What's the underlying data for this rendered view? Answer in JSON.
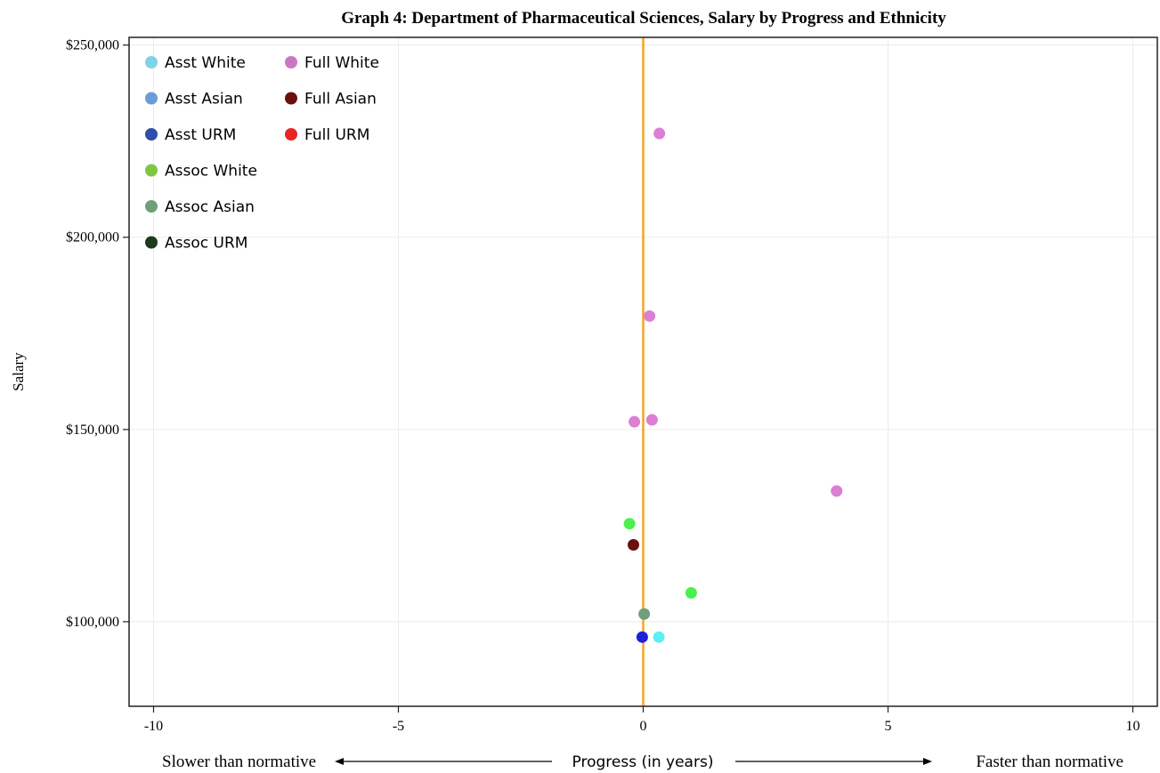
{
  "chart_data": {
    "type": "scatter",
    "title": "Graph 4: Department of Pharmaceutical Sciences, Salary by Progress and Ethnicity",
    "ylabel": "Salary",
    "xlabel": "Progress (in years)",
    "xlabel_left": "Slower than normative",
    "xlabel_right": "Faster than normative",
    "xlim": [
      -10.5,
      10.5
    ],
    "ylim": [
      78000,
      252000
    ],
    "x_ticks": [
      -10,
      -5,
      0,
      5,
      10
    ],
    "x_tick_labels": [
      "-10",
      "-5",
      "0",
      "5",
      "10"
    ],
    "y_ticks": [
      100000,
      150000,
      200000,
      250000
    ],
    "y_tick_labels": [
      "$100,000",
      "$150,000",
      "$200,000",
      "$250,000"
    ],
    "grid": true,
    "reference_line": {
      "x": 0,
      "color": "#f5a623"
    },
    "legend": {
      "placement": "top-left",
      "columns": [
        [
          {
            "name": "Asst White",
            "color": "#7fd3e6"
          },
          {
            "name": "Asst Asian",
            "color": "#6b9bd8"
          },
          {
            "name": "Asst URM",
            "color": "#2f4fa8"
          },
          {
            "name": "Assoc White",
            "color": "#7cc843"
          },
          {
            "name": "Assoc Asian",
            "color": "#6fa07a"
          },
          {
            "name": "Assoc URM",
            "color": "#1d3a1d"
          }
        ],
        [
          {
            "name": "Full White",
            "color": "#cc77c0"
          },
          {
            "name": "Full Asian",
            "color": "#6b1010"
          },
          {
            "name": "Full URM",
            "color": "#e82424"
          }
        ]
      ]
    },
    "points": [
      {
        "series": "Full White",
        "x": 0.33,
        "y": 227000,
        "color": "#db7fd3"
      },
      {
        "series": "Full White",
        "x": 0.13,
        "y": 179500,
        "color": "#db7fd3"
      },
      {
        "series": "Full White",
        "x": 0.18,
        "y": 152500,
        "color": "#db7fd3"
      },
      {
        "series": "Full White",
        "x": -0.18,
        "y": 152000,
        "color": "#db7fd3"
      },
      {
        "series": "Full White",
        "x": 3.95,
        "y": 134000,
        "color": "#db7fd3"
      },
      {
        "series": "Assoc White",
        "x": -0.28,
        "y": 125500,
        "color": "#4cf04c"
      },
      {
        "series": "Full Asian",
        "x": -0.2,
        "y": 120000,
        "color": "#6b1010"
      },
      {
        "series": "Assoc White",
        "x": 0.98,
        "y": 107500,
        "color": "#4cf04c"
      },
      {
        "series": "Assoc Asian",
        "x": 0.02,
        "y": 102000,
        "color": "#6fa07a"
      },
      {
        "series": "Asst URM",
        "x": -0.02,
        "y": 96000,
        "color": "#1f1fe0"
      },
      {
        "series": "Asst White",
        "x": 0.32,
        "y": 96000,
        "color": "#5cf0f5"
      }
    ]
  }
}
